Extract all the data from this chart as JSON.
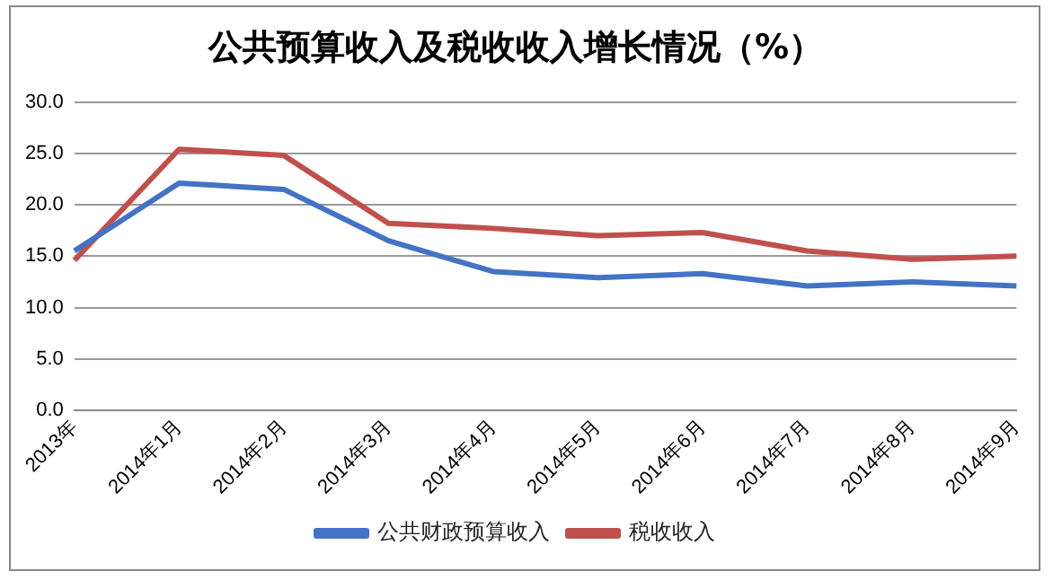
{
  "chart_data": {
    "type": "line",
    "title": "公共预算收入及税收收入增长情况（%）",
    "categories": [
      "2013年",
      "2014年1月",
      "2014年2月",
      "2014年3月",
      "2014年4月",
      "2014年5月",
      "2014年6月",
      "2014年7月",
      "2014年8月",
      "2014年9月"
    ],
    "series": [
      {
        "name": "公共财政预算收入",
        "color": "#4472c4",
        "values": [
          15.5,
          22.1,
          21.5,
          16.5,
          13.5,
          12.9,
          13.3,
          12.1,
          12.5,
          12.1
        ]
      },
      {
        "name": "税收收入",
        "color": "#c0504d",
        "values": [
          14.6,
          25.4,
          24.8,
          18.2,
          17.7,
          17.0,
          17.3,
          15.5,
          14.7,
          15.0
        ]
      }
    ],
    "ylim": [
      0,
      30
    ],
    "yticks": [
      {
        "value": 0,
        "label": "0.0"
      },
      {
        "value": 5,
        "label": "5.0"
      },
      {
        "value": 10,
        "label": "10.0"
      },
      {
        "value": 15,
        "label": "15.0"
      },
      {
        "value": 20,
        "label": "20.0"
      },
      {
        "value": 25,
        "label": "25.0"
      },
      {
        "value": 30,
        "label": "30.0"
      }
    ],
    "grid": "y",
    "legend": "bottom",
    "marker": "none",
    "line_style": "solid"
  }
}
